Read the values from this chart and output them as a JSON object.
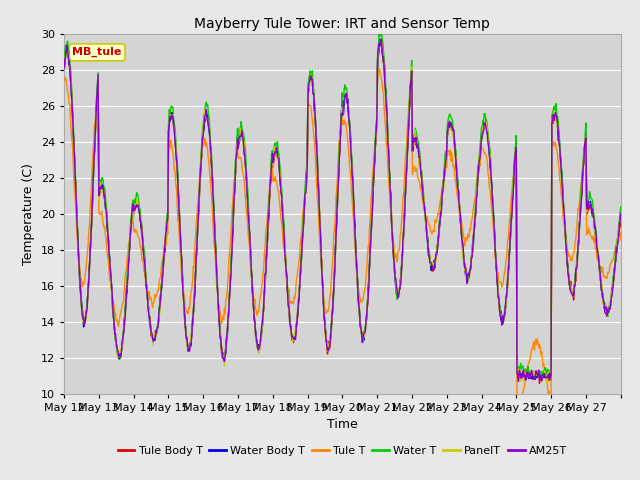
{
  "title": "Mayberry Tule Tower: IRT and Sensor Temp",
  "xlabel": "Time",
  "ylabel": "Temperature (C)",
  "ylim": [
    10,
    30
  ],
  "yticks": [
    10,
    12,
    14,
    16,
    18,
    20,
    22,
    24,
    26,
    28,
    30
  ],
  "background_color": "#e8e8e8",
  "plot_bg_color": "#d4d4d4",
  "grid_color": "#ffffff",
  "annotation_text": "MB_tule",
  "annotation_bg": "#ffffcc",
  "annotation_border": "#cccc00",
  "series": [
    {
      "label": "Tule Body T",
      "color": "#dd0000"
    },
    {
      "label": "Water Body T",
      "color": "#0000dd"
    },
    {
      "label": "Tule T",
      "color": "#ff8800"
    },
    {
      "label": "Water T",
      "color": "#00cc00"
    },
    {
      "label": "PanelT",
      "color": "#cccc00"
    },
    {
      "label": "AM25T",
      "color": "#8800cc"
    }
  ],
  "x_tick_labels": [
    "May 12",
    "May 13",
    "May 14",
    "May 15",
    "May 16",
    "May 17",
    "May 18",
    "May 19",
    "May 20",
    "May 21",
    "May 22",
    "May 23",
    "May 24",
    "May 25",
    "May 26",
    "May 27"
  ],
  "n_days": 16,
  "pts_per_day": 48
}
